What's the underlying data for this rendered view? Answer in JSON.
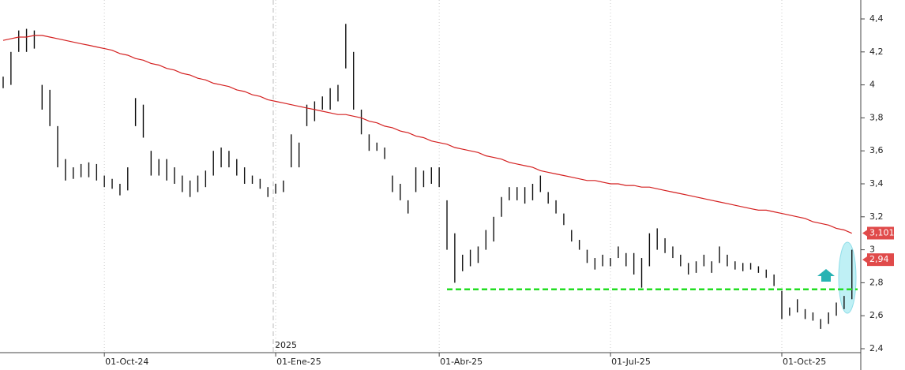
{
  "chart_data": {
    "type": "ohlc",
    "year_label": "2025",
    "categories": [
      null,
      null,
      null,
      null,
      null,
      null,
      null,
      null,
      null,
      null,
      null,
      null,
      null,
      "01-Oct-24",
      null,
      null,
      null,
      null,
      null,
      null,
      null,
      null,
      null,
      null,
      null,
      null,
      null,
      null,
      null,
      null,
      null,
      null,
      null,
      null,
      null,
      "01-Ene-25",
      null,
      null,
      null,
      null,
      null,
      null,
      null,
      null,
      null,
      null,
      null,
      null,
      null,
      null,
      null,
      null,
      null,
      null,
      null,
      null,
      "01-Abr-25",
      null,
      null,
      null,
      null,
      null,
      null,
      null,
      null,
      null,
      null,
      null,
      null,
      null,
      null,
      null,
      null,
      null,
      null,
      null,
      null,
      null,
      "01-Jul-25",
      null,
      null,
      null,
      null,
      null,
      null,
      null,
      null,
      null,
      null,
      null,
      null,
      null,
      null,
      null,
      null,
      null,
      null,
      null,
      null,
      null,
      "01-Oct-25",
      null,
      null,
      null,
      null,
      null,
      null,
      null,
      null,
      null
    ],
    "bars": {
      "color": "#111111",
      "high": [
        4.05,
        4.2,
        4.33,
        4.34,
        4.33,
        4.0,
        3.97,
        3.75,
        3.55,
        3.5,
        3.52,
        3.53,
        3.52,
        3.45,
        3.43,
        3.4,
        3.5,
        3.92,
        3.88,
        3.6,
        3.55,
        3.55,
        3.5,
        3.45,
        3.42,
        3.45,
        3.48,
        3.6,
        3.62,
        3.6,
        3.55,
        3.5,
        3.45,
        3.43,
        3.38,
        3.4,
        3.42,
        3.7,
        3.65,
        3.88,
        3.9,
        3.93,
        3.98,
        4.0,
        4.37,
        4.2,
        3.85,
        3.7,
        3.65,
        3.62,
        3.45,
        3.4,
        3.3,
        3.5,
        3.48,
        3.5,
        3.5,
        3.3,
        3.1,
        2.97,
        3.0,
        3.02,
        3.12,
        3.2,
        3.32,
        3.38,
        3.38,
        3.38,
        3.4,
        3.45,
        3.35,
        3.3,
        3.22,
        3.12,
        3.06,
        3.0,
        2.95,
        2.97,
        2.95,
        3.02,
        2.98,
        2.98,
        2.95,
        3.1,
        3.13,
        3.07,
        3.02,
        2.97,
        2.92,
        2.93,
        2.97,
        2.93,
        3.02,
        2.97,
        2.93,
        2.92,
        2.92,
        2.9,
        2.88,
        2.85,
        2.75,
        2.65,
        2.7,
        2.64,
        2.62,
        2.58,
        2.62,
        2.68,
        2.72,
        3.0
      ],
      "low": [
        3.98,
        4.0,
        4.2,
        4.2,
        4.22,
        3.85,
        3.75,
        3.5,
        3.42,
        3.43,
        3.44,
        3.44,
        3.42,
        3.38,
        3.37,
        3.33,
        3.36,
        3.75,
        3.68,
        3.45,
        3.45,
        3.42,
        3.4,
        3.35,
        3.32,
        3.35,
        3.38,
        3.45,
        3.5,
        3.5,
        3.45,
        3.4,
        3.4,
        3.37,
        3.32,
        3.34,
        3.35,
        3.5,
        3.5,
        3.75,
        3.78,
        3.85,
        3.85,
        3.9,
        4.1,
        3.85,
        3.7,
        3.6,
        3.6,
        3.55,
        3.35,
        3.3,
        3.22,
        3.35,
        3.38,
        3.4,
        3.38,
        3.0,
        2.8,
        2.87,
        2.9,
        2.92,
        3.0,
        3.05,
        3.2,
        3.3,
        3.3,
        3.28,
        3.3,
        3.35,
        3.28,
        3.22,
        3.15,
        3.05,
        3.0,
        2.92,
        2.88,
        2.9,
        2.9,
        2.95,
        2.9,
        2.85,
        2.77,
        2.9,
        3.0,
        2.98,
        2.95,
        2.9,
        2.85,
        2.86,
        2.9,
        2.86,
        2.92,
        2.9,
        2.88,
        2.87,
        2.88,
        2.86,
        2.83,
        2.78,
        2.58,
        2.6,
        2.62,
        2.58,
        2.57,
        2.52,
        2.55,
        2.6,
        2.64,
        2.7
      ]
    },
    "moving_average": {
      "color": "#d42020",
      "values": [
        4.27,
        4.28,
        4.29,
        4.29,
        4.3,
        4.3,
        4.29,
        4.28,
        4.27,
        4.26,
        4.25,
        4.24,
        4.23,
        4.22,
        4.21,
        4.19,
        4.18,
        4.16,
        4.15,
        4.13,
        4.12,
        4.1,
        4.09,
        4.07,
        4.06,
        4.04,
        4.03,
        4.01,
        4.0,
        3.99,
        3.97,
        3.96,
        3.94,
        3.93,
        3.91,
        3.9,
        3.89,
        3.88,
        3.87,
        3.86,
        3.85,
        3.84,
        3.83,
        3.82,
        3.82,
        3.81,
        3.8,
        3.78,
        3.77,
        3.75,
        3.74,
        3.72,
        3.71,
        3.69,
        3.68,
        3.66,
        3.65,
        3.64,
        3.62,
        3.61,
        3.6,
        3.59,
        3.57,
        3.56,
        3.55,
        3.53,
        3.52,
        3.51,
        3.5,
        3.48,
        3.47,
        3.46,
        3.45,
        3.44,
        3.43,
        3.42,
        3.42,
        3.41,
        3.4,
        3.4,
        3.39,
        3.39,
        3.38,
        3.38,
        3.37,
        3.36,
        3.35,
        3.34,
        3.33,
        3.32,
        3.31,
        3.3,
        3.29,
        3.28,
        3.27,
        3.26,
        3.25,
        3.24,
        3.24,
        3.23,
        3.22,
        3.21,
        3.2,
        3.19,
        3.17,
        3.16,
        3.15,
        3.13,
        3.12,
        3.1
      ]
    },
    "support": {
      "level": 2.76,
      "color": "#22dd22"
    },
    "last_value_labels": [
      {
        "value": 3.101,
        "label": "3,101"
      },
      {
        "value": 2.94,
        "label": "2,94"
      }
    ],
    "last_value_color": "#e04a4a",
    "ylim": [
      2.4,
      4.4
    ],
    "yticks": [
      {
        "value": 2.4,
        "label": "2,4"
      },
      {
        "value": 2.6,
        "label": "2,6"
      },
      {
        "value": 2.8,
        "label": "2,8"
      },
      3,
      {
        "value": 3.2,
        "label": "3,2"
      },
      {
        "value": 3.4,
        "label": "3,4"
      },
      {
        "value": 3.6,
        "label": "3,6"
      },
      {
        "value": 3.8,
        "label": "3,8"
      },
      4,
      {
        "value": 4.2,
        "label": "4,2"
      },
      {
        "value": 4.4,
        "label": "4,4"
      }
    ]
  }
}
